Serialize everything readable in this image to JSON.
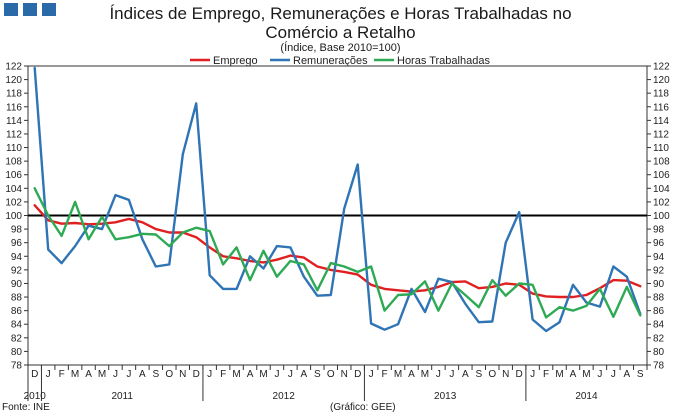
{
  "chart_data": {
    "type": "line",
    "title": "Índices de Emprego, Remunerações e Horas Trabalhadas no Comércio a Retalho",
    "title_line1": "Índices de Emprego, Remunerações e Horas Trabalhadas no",
    "title_line2": "Comércio a Retalho",
    "subtitle": "(Índice, Base 2010=100)",
    "ylim": [
      78,
      122
    ],
    "y_ticks": [
      78,
      80,
      82,
      84,
      86,
      88,
      90,
      92,
      94,
      96,
      98,
      100,
      102,
      104,
      106,
      108,
      110,
      112,
      114,
      116,
      118,
      120,
      122
    ],
    "reference_line": 100,
    "x": [
      "D",
      "J",
      "F",
      "M",
      "A",
      "M",
      "J",
      "J",
      "A",
      "S",
      "O",
      "N",
      "D",
      "J",
      "F",
      "M",
      "A",
      "M",
      "J",
      "J",
      "A",
      "S",
      "O",
      "N",
      "D",
      "J",
      "F",
      "M",
      "A",
      "M",
      "J",
      "J",
      "A",
      "S",
      "O",
      "N",
      "D",
      "J",
      "F",
      "M",
      "A",
      "M",
      "J",
      "J",
      "A",
      "S"
    ],
    "years": [
      {
        "label": "2010",
        "start": 0,
        "end": 0
      },
      {
        "label": "2011",
        "start": 1,
        "end": 12
      },
      {
        "label": "2012",
        "start": 13,
        "end": 24
      },
      {
        "label": "2013",
        "start": 25,
        "end": 36
      },
      {
        "label": "2014",
        "start": 37,
        "end": 45
      }
    ],
    "legend_position": "top",
    "series": [
      {
        "name": "Emprego",
        "color": "#e02020",
        "values": [
          101.5,
          99.3,
          98.8,
          98.9,
          98.7,
          98.8,
          99.0,
          99.5,
          99.0,
          98.0,
          97.5,
          97.5,
          96.8,
          95.3,
          94.0,
          93.7,
          93.3,
          93.1,
          93.5,
          94.1,
          93.8,
          92.5,
          92.0,
          91.7,
          91.3,
          89.8,
          89.2,
          89.0,
          88.8,
          89.0,
          89.5,
          90.2,
          90.3,
          89.3,
          89.5,
          90.0,
          89.8,
          88.5,
          88.1,
          88.0,
          88.0,
          88.3,
          89.3,
          90.5,
          90.4,
          89.6
        ]
      },
      {
        "name": "Remunerações",
        "color": "#2f74b5",
        "values": [
          121.7,
          95.0,
          93.0,
          95.5,
          98.5,
          98.0,
          103.0,
          102.3,
          96.5,
          92.5,
          92.8,
          109.0,
          116.5,
          91.2,
          89.2,
          89.2,
          94.0,
          92.2,
          95.5,
          95.3,
          91.0,
          88.2,
          88.3,
          101.0,
          107.5,
          84.1,
          83.2,
          84.0,
          89.2,
          85.8,
          90.7,
          90.2,
          87.0,
          84.3,
          84.4,
          96.0,
          100.5,
          84.7,
          83.0,
          84.3,
          89.8,
          87.2,
          86.6,
          92.5,
          91.0,
          85.5
        ]
      },
      {
        "name": "Horas Trabalhadas",
        "color": "#2eaa55",
        "values": [
          104.0,
          100.0,
          97.0,
          102.0,
          96.5,
          99.8,
          96.5,
          96.8,
          97.3,
          97.2,
          95.5,
          97.5,
          98.2,
          97.7,
          92.8,
          95.3,
          90.5,
          94.8,
          91.0,
          93.3,
          92.8,
          89.0,
          93.0,
          92.5,
          91.7,
          92.5,
          86.0,
          88.3,
          88.4,
          90.3,
          86.0,
          90.0,
          88.3,
          86.5,
          90.5,
          88.2,
          90.0,
          89.8,
          85.0,
          86.5,
          86.0,
          86.7,
          89.2,
          85.1,
          89.5,
          85.3
        ]
      }
    ]
  },
  "footer": {
    "source": "Fonte: INE",
    "credit": "(Gráfico: GEE)"
  },
  "colors": {
    "axis": "#333333",
    "reference": "#000000",
    "logo": "#2a6aa8"
  }
}
